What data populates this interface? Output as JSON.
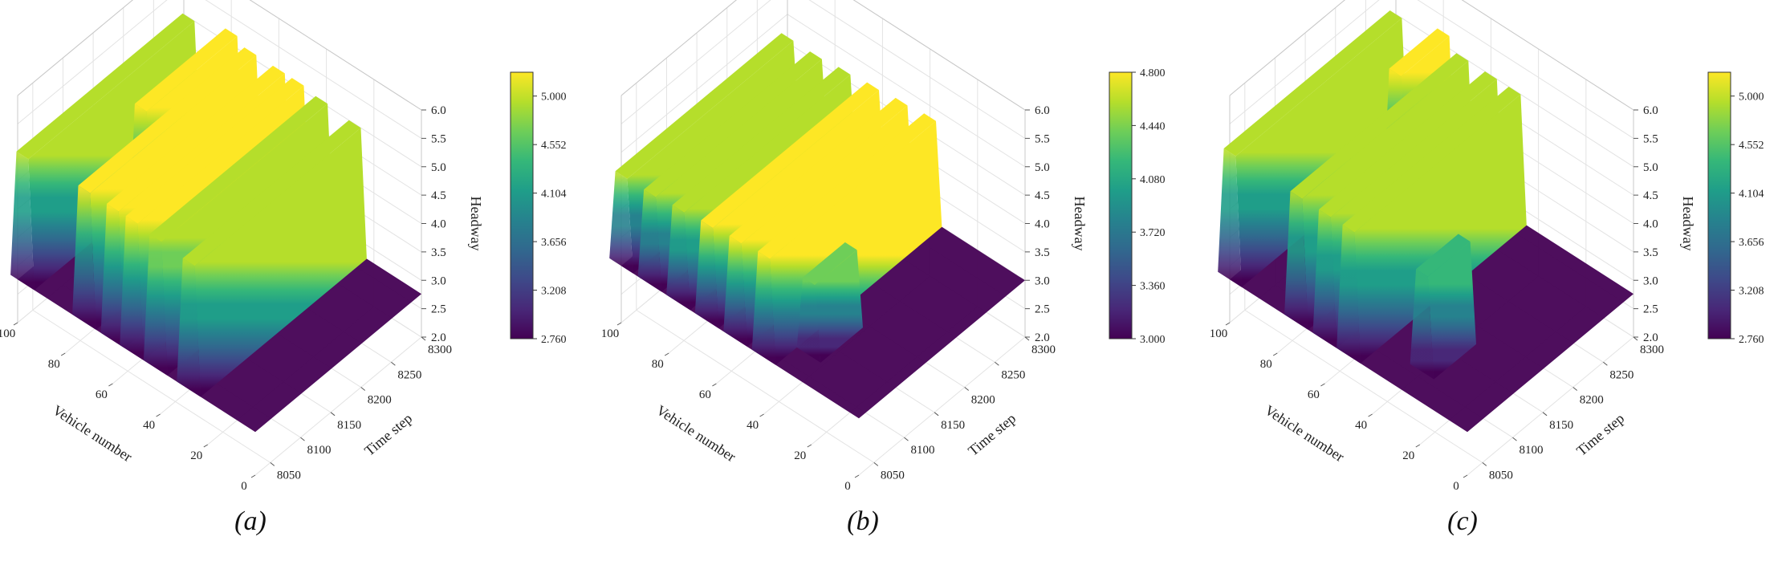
{
  "panel_labels": [
    "(a)",
    "(b)",
    "(c)"
  ],
  "colormap": [
    "#440154",
    "#482878",
    "#3e4989",
    "#31688e",
    "#26828e",
    "#1f9e89",
    "#35b779",
    "#6ece58",
    "#b5de2b",
    "#fde725"
  ],
  "chart_data": [
    {
      "type": "surface3d",
      "panel": "(a)",
      "xlabel": "Vehicle number",
      "ylabel": "Time step",
      "zlabel": "Headway",
      "x_ticks": [
        "0",
        "20",
        "40",
        "60",
        "80",
        "100"
      ],
      "y_ticks": [
        "8050",
        "8100",
        "8150",
        "8200",
        "8250",
        "8300"
      ],
      "z_ticks": [
        "2.0",
        "2.5",
        "3.0",
        "3.5",
        "4.0",
        "4.5",
        "5.0",
        "5.5",
        "6.0"
      ],
      "xlim": [
        0,
        100
      ],
      "ylim": [
        8025,
        8300
      ],
      "zlim": [
        2.0,
        6.0
      ],
      "colorbar_ticks": [
        "5.000",
        "4.552",
        "4.104",
        "3.656",
        "3.208",
        "2.760"
      ],
      "colorbar_range": [
        2.76,
        5.22
      ],
      "ridges": [
        {
          "x": 98,
          "y0": 8025,
          "y1": 8300,
          "base": 2.76,
          "top": 5.0
        },
        {
          "x": 80,
          "y0": 8150,
          "y1": 8300,
          "base": 2.76,
          "top": 5.22
        },
        {
          "x": 72,
          "y0": 8025,
          "y1": 8300,
          "base": 2.76,
          "top": 5.1
        },
        {
          "x": 60,
          "y0": 8025,
          "y1": 8300,
          "base": 2.76,
          "top": 5.1
        },
        {
          "x": 52,
          "y0": 8025,
          "y1": 8300,
          "base": 2.76,
          "top": 5.1
        },
        {
          "x": 42,
          "y0": 8025,
          "y1": 8300,
          "base": 2.76,
          "top": 5.05
        },
        {
          "x": 28,
          "y0": 8025,
          "y1": 8300,
          "base": 2.76,
          "top": 5.0
        }
      ]
    },
    {
      "type": "surface3d",
      "panel": "(b)",
      "xlabel": "Vehicle number",
      "ylabel": "Time step",
      "zlabel": "Headway",
      "x_ticks": [
        "0",
        "20",
        "40",
        "60",
        "80",
        "100"
      ],
      "y_ticks": [
        "8050",
        "8100",
        "8150",
        "8200",
        "8250",
        "8300"
      ],
      "z_ticks": [
        "2.0",
        "2.5",
        "3.0",
        "3.5",
        "4.0",
        "4.5",
        "5.0",
        "5.5",
        "6.0"
      ],
      "xlim": [
        0,
        100
      ],
      "ylim": [
        8025,
        8300
      ],
      "zlim": [
        2.0,
        6.0
      ],
      "colorbar_ticks": [
        "4.800",
        "4.440",
        "4.080",
        "3.720",
        "3.360",
        "3.000"
      ],
      "colorbar_range": [
        3.0,
        4.8
      ],
      "ridges": [
        {
          "x": 100,
          "y0": 8025,
          "y1": 8300,
          "base": 3.0,
          "top": 4.6
        },
        {
          "x": 88,
          "y0": 8025,
          "y1": 8300,
          "base": 3.0,
          "top": 4.6
        },
        {
          "x": 76,
          "y0": 8025,
          "y1": 8300,
          "base": 3.0,
          "top": 4.65
        },
        {
          "x": 64,
          "y0": 8025,
          "y1": 8300,
          "base": 3.0,
          "top": 4.7
        },
        {
          "x": 52,
          "y0": 8025,
          "y1": 8300,
          "base": 3.0,
          "top": 4.75
        },
        {
          "x": 40,
          "y0": 8025,
          "y1": 8300,
          "base": 3.0,
          "top": 4.8
        },
        {
          "x": 30,
          "y0": 8060,
          "y1": 8130,
          "base": 3.0,
          "top": 4.3
        }
      ]
    },
    {
      "type": "surface3d",
      "panel": "(c)",
      "xlabel": "Vehicle number",
      "ylabel": "Time step",
      "zlabel": "Headway",
      "x_ticks": [
        "0",
        "20",
        "40",
        "60",
        "80",
        "100"
      ],
      "y_ticks": [
        "8050",
        "8100",
        "8150",
        "8200",
        "8250",
        "8300"
      ],
      "z_ticks": [
        "2.0",
        "2.5",
        "3.0",
        "3.5",
        "4.0",
        "4.5",
        "5.0",
        "5.5",
        "6.0"
      ],
      "xlim": [
        0,
        100
      ],
      "ylim": [
        8025,
        8300
      ],
      "zlim": [
        2.0,
        6.0
      ],
      "colorbar_ticks": [
        "5.000",
        "4.552",
        "4.104",
        "3.656",
        "3.208",
        "2.760"
      ],
      "colorbar_range": [
        2.76,
        5.22
      ],
      "ridges": [
        {
          "x": 100,
          "y0": 8025,
          "y1": 8300,
          "base": 2.76,
          "top": 5.0
        },
        {
          "x": 80,
          "y0": 8220,
          "y1": 8300,
          "base": 2.76,
          "top": 5.22
        },
        {
          "x": 72,
          "y0": 8025,
          "y1": 8300,
          "base": 2.76,
          "top": 5.0
        },
        {
          "x": 60,
          "y0": 8025,
          "y1": 8300,
          "base": 2.76,
          "top": 5.0
        },
        {
          "x": 50,
          "y0": 8025,
          "y1": 8300,
          "base": 2.76,
          "top": 5.0
        },
        {
          "x": 28,
          "y0": 8060,
          "y1": 8130,
          "base": 2.76,
          "top": 4.5
        }
      ]
    }
  ]
}
